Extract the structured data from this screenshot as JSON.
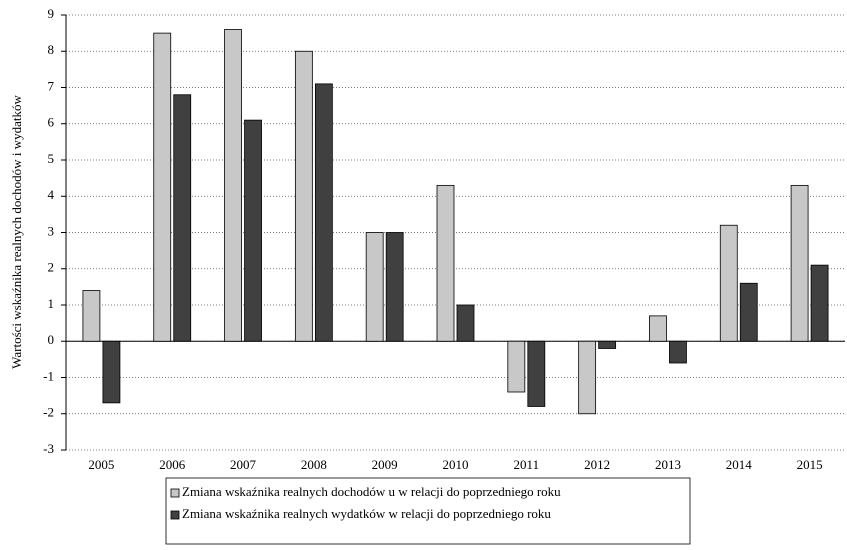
{
  "chart_data": {
    "type": "bar",
    "y_label": "Wartości wskaźnika realnych dochodów i wydatków",
    "categories": [
      "2005",
      "2006",
      "2007",
      "2008",
      "2009",
      "2010",
      "2011",
      "2012",
      "2013",
      "2014",
      "2015"
    ],
    "series": [
      {
        "name": "Zmiana wskaźnika realnych dochodów u w relacji  do poprzedniego roku",
        "color": "#c8c8c8",
        "values": [
          1.4,
          8.5,
          8.6,
          8.0,
          3.0,
          4.3,
          -1.4,
          -2.0,
          0.7,
          3.2,
          4.3
        ]
      },
      {
        "name": "Zmiana wskaźnika realnych wydatków w relacji  do poprzedniego roku",
        "color": "#404040",
        "values": [
          -1.7,
          6.8,
          6.1,
          7.1,
          3.0,
          1.0,
          -1.8,
          -0.2,
          -0.6,
          1.6,
          2.1
        ]
      }
    ],
    "ylim": [
      -3,
      9
    ],
    "yticks": [
      -3,
      -2,
      -1,
      0,
      1,
      2,
      3,
      4,
      5,
      6,
      7,
      8,
      9
    ],
    "grid": true,
    "legend": "bottom"
  }
}
